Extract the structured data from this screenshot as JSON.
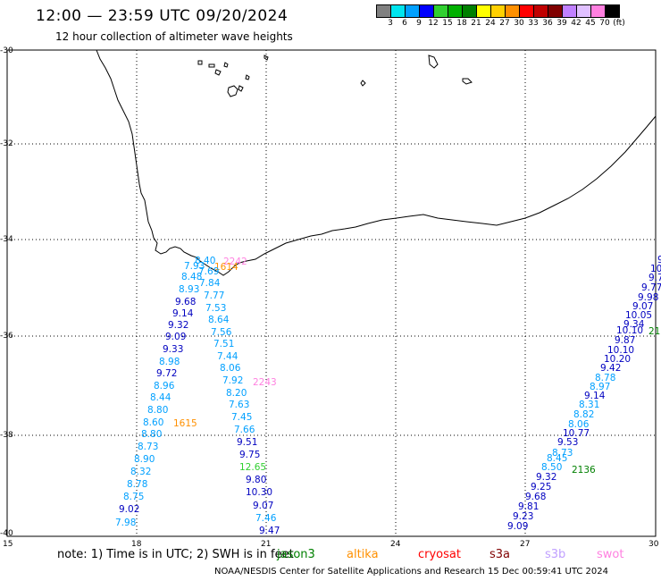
{
  "header": {
    "title": "12:00 — 23:59 UTC 09/20/2024",
    "subtitle": "12 hour collection of altimeter wave heights"
  },
  "legend": {
    "colors": [
      "#808080",
      "#00e5ee",
      "#00a0ff",
      "#0000ff",
      "#30d030",
      "#00b000",
      "#008000",
      "#ffff00",
      "#ffd000",
      "#ff9000",
      "#ff0000",
      "#c00000",
      "#800000",
      "#c080ff",
      "#e0c0ff",
      "#ff80e0",
      "#000000"
    ],
    "labels": [
      "3",
      "6",
      "9",
      "12",
      "15",
      "18",
      "21",
      "24",
      "27",
      "30",
      "33",
      "36",
      "39",
      "42",
      "45",
      "70",
      "(ft)"
    ]
  },
  "axes": {
    "y_labels": [
      "-30",
      "-32",
      "-34",
      "-36",
      "-38",
      "-40"
    ],
    "x_labels": [
      "15",
      "18",
      "21",
      "24",
      "27",
      "30"
    ]
  },
  "note": "note:  1) Time is in UTC; 2) SWH is in feet",
  "satellites": [
    {
      "name": "jason3",
      "color": "#008000"
    },
    {
      "name": "altika",
      "color": "#ff9000"
    },
    {
      "name": "cryosat",
      "color": "#ff0000"
    },
    {
      "name": "s3a",
      "color": "#800000"
    },
    {
      "name": "s3b",
      "color": "#c0a0ff"
    },
    {
      "name": "swot",
      "color": "#ff80e0"
    }
  ],
  "footer": "NOAA/NESDIS Center for Satellite Applications and Research     15 Dec 00:59:41 UTC 2024",
  "track_labels": [
    {
      "text": "2242",
      "color": "#ff80e0"
    },
    {
      "text": "1614",
      "color": "#ff9000"
    },
    {
      "text": "2243",
      "color": "#ff80e0"
    },
    {
      "text": "1615",
      "color": "#ff9000"
    },
    {
      "text": "2136",
      "color": "#008000"
    },
    {
      "text": "21",
      "color": "#008000"
    }
  ],
  "tracks": {
    "track1": [
      "8.40",
      "7.93",
      "8.48",
      "8.93",
      "9.68",
      "9.14",
      "9.32",
      "9.09",
      "9.33",
      "8.98",
      "9.72",
      "8.96",
      "8.44",
      "8.80",
      "8.60",
      "8.80",
      "8.73",
      "8.90",
      "8.32",
      "8.78",
      "8.75",
      "9.02",
      "7.98"
    ],
    "track2": [
      "7.69",
      "7.84",
      "7.77",
      "7.53",
      "8.64",
      "7.56",
      "7.51",
      "7.44",
      "8.06",
      "7.92",
      "8.20",
      "7.63",
      "7.45",
      "7.66",
      "9.51",
      "9.75",
      "12.65",
      "9.80",
      "10.30",
      "9.07",
      "7.46",
      "9.47"
    ],
    "track3": [
      "9.09",
      "9.23",
      "9.81",
      "9.68",
      "9.25",
      "9.32",
      "8.50",
      "8.45",
      "8.73",
      "9.53",
      "10.77",
      "8.06",
      "8.82",
      "8.31",
      "9.14",
      "8.97",
      "8.78",
      "9.42",
      "10.20",
      "10.10",
      "9.87",
      "10.10",
      "9.34",
      "10.05",
      "9.07",
      "9.98",
      "9.77",
      "9.7",
      "10",
      "9"
    ]
  }
}
